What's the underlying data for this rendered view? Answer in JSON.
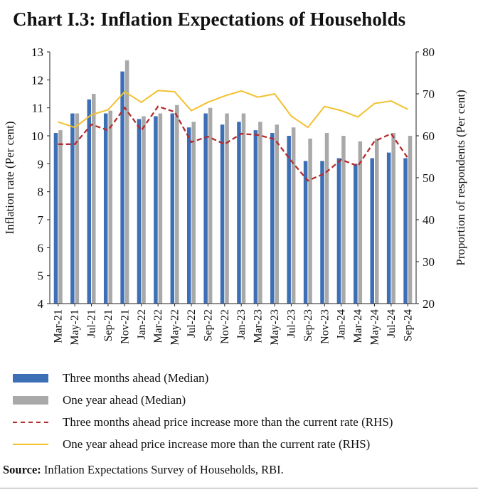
{
  "title": "Chart I.3: Inflation Expectations of Households",
  "source": {
    "label": "Source:",
    "text": "Inflation Expectations Survey of Households, RBI."
  },
  "colors": {
    "three_months": "#3d6fb6",
    "one_year": "#a9a9a9",
    "three_months_rhs": "#b32d2e",
    "one_year_rhs": "#f2c12e"
  },
  "chart_data": {
    "type": "bar",
    "ylabel": "Inflation rate (Per cent)",
    "y2label": "Proportion of respondents (Per cent)",
    "ylim": [
      4,
      13
    ],
    "y2lim": [
      20,
      80
    ],
    "yticks": [
      "13",
      "12",
      "11",
      "10",
      "9",
      "8",
      "7",
      "6",
      "5",
      "4"
    ],
    "y2ticks": [
      "80",
      "70",
      "60",
      "50",
      "40",
      "30",
      "20"
    ],
    "categories": [
      "Mar-21",
      "May-21",
      "Jul-21",
      "Sep-21",
      "Nov-21",
      "Jan-22",
      "Mar-22",
      "May-22",
      "Jul-22",
      "Sep-22",
      "Nov-22",
      "Jan-23",
      "Mar-23",
      "May-23",
      "Jul-23",
      "Sep-23",
      "Nov-23",
      "Jan-24",
      "Mar-24",
      "May-24",
      "Jul-24",
      "Sep-24"
    ],
    "series": [
      {
        "name": "Three months ahead (Median)",
        "type": "bar",
        "axis": "left",
        "values": [
          10.1,
          10.8,
          11.3,
          10.8,
          12.3,
          10.6,
          10.7,
          10.8,
          10.3,
          10.8,
          10.4,
          10.5,
          10.2,
          10.1,
          10.0,
          9.1,
          9.1,
          9.2,
          9.0,
          9.2,
          9.4,
          9.2
        ]
      },
      {
        "name": "One year ahead (Median)",
        "type": "bar",
        "axis": "left",
        "values": [
          10.2,
          10.8,
          11.5,
          10.9,
          12.7,
          10.7,
          10.8,
          11.1,
          10.5,
          11.0,
          10.8,
          10.8,
          10.5,
          10.4,
          10.3,
          9.9,
          10.1,
          10.0,
          9.8,
          9.9,
          10.1,
          10.0
        ]
      },
      {
        "name": "Three months ahead price increase more than the current rate (RHS)",
        "type": "line",
        "axis": "right",
        "dashed": true,
        "values": [
          58.0,
          58.0,
          62.7,
          61.3,
          66.7,
          61.3,
          67.0,
          65.7,
          58.5,
          59.8,
          58.0,
          60.5,
          60.2,
          59.2,
          54.0,
          49.3,
          51.0,
          54.3,
          52.8,
          58.7,
          60.5,
          54.7
        ]
      },
      {
        "name": "One year ahead price increase more than the current rate (RHS)",
        "type": "line",
        "axis": "right",
        "dashed": false,
        "values": [
          63.3,
          62.0,
          65.0,
          66.2,
          70.5,
          68.0,
          70.8,
          70.5,
          66.0,
          68.0,
          69.5,
          70.7,
          69.2,
          70.0,
          64.7,
          62.0,
          67.0,
          66.0,
          64.5,
          67.7,
          68.3,
          66.3
        ]
      }
    ]
  }
}
